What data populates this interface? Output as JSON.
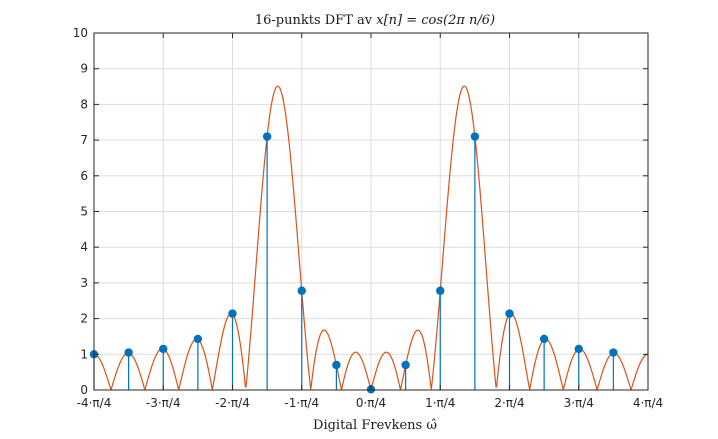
{
  "chart_data": {
    "type": "line",
    "title_text": "16-punkts DFT av ",
    "title_math": "x[n] = cos(2π n/6)",
    "xlabel": "Digital Frevkens ω̂",
    "ylabel": "",
    "xlim": [
      -3.14159,
      3.14159
    ],
    "ylim": [
      0,
      10
    ],
    "grid": true,
    "x_ticks": [
      -3.14159,
      -2.35619,
      -1.5708,
      -0.7854,
      0,
      0.7854,
      1.5708,
      2.35619,
      3.14159
    ],
    "x_tick_labels": [
      "-4·π/4",
      "-3·π/4",
      "-2·π/4",
      "-1·π/4",
      "0·π/4",
      "1·π/4",
      "2·π/4",
      "3·π/4",
      "4·π/4"
    ],
    "y_ticks": [
      0,
      1,
      2,
      3,
      4,
      5,
      6,
      7,
      8,
      9,
      10
    ],
    "y_tick_labels": [
      "0",
      "1",
      "2",
      "3",
      "4",
      "5",
      "6",
      "7",
      "8",
      "9",
      "10"
    ],
    "series": [
      {
        "kind": "curve",
        "color": "#d95319",
        "signal_period": 6,
        "dft_length": 16
      },
      {
        "kind": "stem",
        "color": "#0072bd",
        "x": [
          -3.14159,
          -2.74889,
          -2.35619,
          -1.9635,
          -1.5708,
          -1.1781,
          -0.7854,
          -0.3927,
          0,
          0.3927,
          0.7854,
          1.1781,
          1.5708,
          1.9635,
          2.35619,
          2.74889
        ],
        "values": [
          1.0,
          1.05,
          1.15,
          1.43,
          2.14,
          7.1,
          2.78,
          0.7,
          0.02,
          0.7,
          2.78,
          7.1,
          2.14,
          1.43,
          1.15,
          1.05
        ]
      }
    ]
  }
}
